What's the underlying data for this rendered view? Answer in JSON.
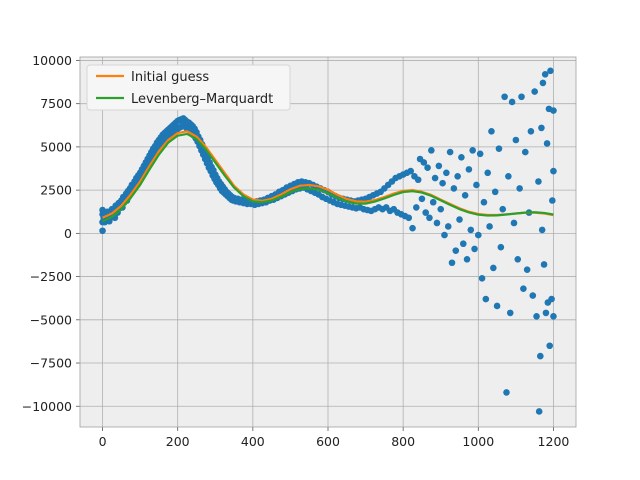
{
  "colors": {
    "background": "#ffffff",
    "plot_background": "#eeeeee",
    "grid": "#b0b0b0",
    "scatter": "#1f77b4",
    "initial_guess": "#ff7f0e",
    "levenberg_marquardt": "#2ca02c"
  },
  "chart_data": {
    "type": "scatter",
    "title": "",
    "xlabel": "",
    "ylabel": "",
    "xlim": [
      -60,
      1260
    ],
    "ylim": [
      -11200,
      10200
    ],
    "grid": true,
    "legend_placement": "top-left",
    "x_ticks": [
      0,
      200,
      400,
      600,
      800,
      1000,
      1200
    ],
    "x_tick_labels": [
      "0",
      "200",
      "400",
      "600",
      "800",
      "1000",
      "1200"
    ],
    "y_ticks": [
      10000,
      7500,
      5000,
      2500,
      0,
      -2500,
      -5000,
      -7500,
      -10000
    ],
    "y_tick_labels": [
      "10000",
      "7500",
      "5000",
      "2500",
      "0",
      "−2500",
      "−5000",
      "−7500",
      "−10000"
    ],
    "series": [
      {
        "name": "Initial guess",
        "kind": "line",
        "color": "#ff7f0e",
        "x": [
          0,
          25,
          50,
          75,
          100,
          125,
          150,
          175,
          200,
          225,
          250,
          275,
          300,
          325,
          350,
          375,
          400,
          425,
          450,
          475,
          500,
          525,
          550,
          575,
          600,
          625,
          650,
          675,
          700,
          725,
          750,
          775,
          800,
          825,
          850,
          875,
          900,
          925,
          950,
          975,
          1000,
          1025,
          1050,
          1075,
          1100,
          1125,
          1150,
          1175,
          1200
        ],
        "y": [
          900,
          1150,
          1600,
          2250,
          3000,
          3900,
          4750,
          5400,
          5800,
          5900,
          5600,
          5000,
          4250,
          3500,
          2750,
          2250,
          1950,
          1880,
          2000,
          2250,
          2550,
          2750,
          2800,
          2720,
          2520,
          2230,
          1990,
          1850,
          1830,
          1930,
          2100,
          2300,
          2460,
          2500,
          2400,
          2220,
          1950,
          1700,
          1450,
          1250,
          1120,
          1060,
          1060,
          1100,
          1150,
          1200,
          1200,
          1150,
          1050
        ]
      },
      {
        "name": "Levenberg–Marquardt",
        "kind": "line",
        "color": "#2ca02c",
        "x": [
          0,
          25,
          50,
          75,
          100,
          125,
          150,
          175,
          200,
          225,
          250,
          275,
          300,
          325,
          350,
          375,
          400,
          425,
          450,
          475,
          500,
          525,
          550,
          575,
          600,
          625,
          650,
          675,
          700,
          725,
          750,
          775,
          800,
          825,
          850,
          875,
          900,
          925,
          950,
          975,
          1000,
          1025,
          1050,
          1075,
          1100,
          1125,
          1150,
          1175,
          1200
        ],
        "y": [
          700,
          950,
          1400,
          2050,
          2800,
          3700,
          4550,
          5250,
          5650,
          5750,
          5450,
          4850,
          4100,
          3350,
          2650,
          2150,
          1850,
          1800,
          1900,
          2120,
          2380,
          2560,
          2600,
          2520,
          2320,
          2050,
          1840,
          1720,
          1720,
          1840,
          2020,
          2220,
          2390,
          2440,
          2360,
          2170,
          1910,
          1650,
          1400,
          1210,
          1080,
          1030,
          1040,
          1090,
          1150,
          1200,
          1220,
          1180,
          1090
        ]
      }
    ],
    "scatter_points": [
      [
        0,
        150
      ],
      [
        0,
        650
      ],
      [
        0,
        1100
      ],
      [
        0,
        1350
      ],
      [
        3,
        900
      ],
      [
        6,
        650
      ],
      [
        8,
        1100
      ],
      [
        10,
        800
      ],
      [
        13,
        1250
      ],
      [
        15,
        900
      ],
      [
        18,
        700
      ],
      [
        20,
        1150
      ],
      [
        23,
        950
      ],
      [
        25,
        1400
      ],
      [
        28,
        1050
      ],
      [
        30,
        1250
      ],
      [
        33,
        900
      ],
      [
        35,
        1600
      ],
      [
        38,
        1300
      ],
      [
        40,
        1200
      ],
      [
        43,
        1750
      ],
      [
        45,
        1450
      ],
      [
        48,
        1600
      ],
      [
        50,
        1900
      ],
      [
        53,
        1500
      ],
      [
        55,
        2100
      ],
      [
        58,
        1800
      ],
      [
        60,
        2000
      ],
      [
        63,
        2300
      ],
      [
        65,
        1900
      ],
      [
        68,
        2450
      ],
      [
        70,
        2150
      ],
      [
        73,
        2600
      ],
      [
        75,
        2300
      ],
      [
        78,
        2800
      ],
      [
        80,
        2500
      ],
      [
        83,
        2700
      ],
      [
        85,
        3000
      ],
      [
        88,
        2700
      ],
      [
        90,
        3200
      ],
      [
        93,
        2900
      ],
      [
        95,
        3350
      ],
      [
        98,
        3100
      ],
      [
        100,
        3500
      ],
      [
        103,
        3250
      ],
      [
        105,
        3700
      ],
      [
        108,
        3400
      ],
      [
        110,
        3900
      ],
      [
        113,
        3600
      ],
      [
        115,
        4100
      ],
      [
        118,
        3850
      ],
      [
        120,
        4300
      ],
      [
        123,
        3950
      ],
      [
        125,
        4500
      ],
      [
        128,
        4200
      ],
      [
        130,
        4700
      ],
      [
        133,
        4350
      ],
      [
        135,
        4900
      ],
      [
        138,
        4550
      ],
      [
        140,
        5050
      ],
      [
        143,
        4800
      ],
      [
        145,
        5250
      ],
      [
        148,
        4900
      ],
      [
        150,
        5400
      ],
      [
        153,
        5100
      ],
      [
        155,
        5550
      ],
      [
        158,
        5200
      ],
      [
        160,
        5700
      ],
      [
        163,
        5350
      ],
      [
        165,
        5800
      ],
      [
        168,
        5500
      ],
      [
        170,
        5900
      ],
      [
        173,
        5550
      ],
      [
        175,
        6000
      ],
      [
        178,
        5650
      ],
      [
        180,
        6100
      ],
      [
        183,
        5800
      ],
      [
        185,
        6200
      ],
      [
        188,
        5900
      ],
      [
        190,
        6300
      ],
      [
        193,
        5950
      ],
      [
        195,
        6400
      ],
      [
        198,
        6000
      ],
      [
        200,
        6500
      ],
      [
        203,
        6100
      ],
      [
        205,
        6550
      ],
      [
        208,
        6150
      ],
      [
        210,
        6600
      ],
      [
        213,
        6250
      ],
      [
        215,
        6650
      ],
      [
        218,
        6200
      ],
      [
        220,
        6550
      ],
      [
        223,
        6100
      ],
      [
        225,
        6450
      ],
      [
        228,
        6050
      ],
      [
        230,
        6400
      ],
      [
        233,
        5950
      ],
      [
        235,
        6300
      ],
      [
        238,
        5800
      ],
      [
        240,
        6200
      ],
      [
        243,
        5650
      ],
      [
        245,
        6050
      ],
      [
        248,
        5500
      ],
      [
        250,
        5850
      ],
      [
        253,
        5300
      ],
      [
        255,
        5600
      ],
      [
        258,
        5050
      ],
      [
        260,
        5400
      ],
      [
        263,
        4800
      ],
      [
        265,
        5150
      ],
      [
        268,
        4550
      ],
      [
        270,
        4900
      ],
      [
        273,
        4300
      ],
      [
        275,
        4650
      ],
      [
        278,
        4050
      ],
      [
        280,
        4350
      ],
      [
        283,
        3800
      ],
      [
        285,
        4100
      ],
      [
        288,
        3600
      ],
      [
        290,
        3850
      ],
      [
        293,
        3350
      ],
      [
        295,
        3650
      ],
      [
        298,
        3150
      ],
      [
        300,
        3400
      ],
      [
        303,
        2950
      ],
      [
        305,
        3200
      ],
      [
        308,
        2800
      ],
      [
        310,
        3000
      ],
      [
        313,
        2600
      ],
      [
        315,
        2850
      ],
      [
        318,
        2450
      ],
      [
        320,
        2700
      ],
      [
        323,
        2350
      ],
      [
        325,
        2550
      ],
      [
        328,
        2250
      ],
      [
        330,
        2400
      ],
      [
        333,
        2150
      ],
      [
        335,
        2300
      ],
      [
        338,
        2050
      ],
      [
        340,
        2200
      ],
      [
        343,
        1950
      ],
      [
        345,
        2100
      ],
      [
        348,
        1900
      ],
      [
        350,
        2050
      ],
      [
        355,
        1850
      ],
      [
        360,
        2000
      ],
      [
        365,
        1800
      ],
      [
        370,
        1950
      ],
      [
        375,
        1750
      ],
      [
        380,
        1900
      ],
      [
        385,
        1700
      ],
      [
        390,
        1850
      ],
      [
        395,
        1700
      ],
      [
        400,
        1800
      ],
      [
        405,
        1650
      ],
      [
        410,
        1850
      ],
      [
        415,
        1700
      ],
      [
        420,
        1900
      ],
      [
        425,
        1750
      ],
      [
        430,
        1950
      ],
      [
        435,
        1800
      ],
      [
        440,
        2050
      ],
      [
        445,
        1900
      ],
      [
        450,
        2150
      ],
      [
        455,
        1950
      ],
      [
        460,
        2250
      ],
      [
        465,
        2050
      ],
      [
        470,
        2400
      ],
      [
        475,
        2150
      ],
      [
        480,
        2500
      ],
      [
        485,
        2250
      ],
      [
        490,
        2650
      ],
      [
        495,
        2350
      ],
      [
        500,
        2750
      ],
      [
        505,
        2450
      ],
      [
        510,
        2850
      ],
      [
        515,
        2550
      ],
      [
        520,
        2950
      ],
      [
        525,
        2600
      ],
      [
        530,
        3000
      ],
      [
        535,
        2650
      ],
      [
        540,
        2950
      ],
      [
        545,
        2550
      ],
      [
        550,
        2900
      ],
      [
        555,
        2450
      ],
      [
        560,
        2800
      ],
      [
        565,
        2350
      ],
      [
        570,
        2700
      ],
      [
        575,
        2250
      ],
      [
        580,
        2600
      ],
      [
        585,
        2100
      ],
      [
        590,
        2500
      ],
      [
        595,
        2000
      ],
      [
        600,
        2400
      ],
      [
        605,
        1900
      ],
      [
        610,
        2250
      ],
      [
        615,
        1800
      ],
      [
        620,
        2150
      ],
      [
        625,
        1700
      ],
      [
        630,
        2050
      ],
      [
        635,
        1650
      ],
      [
        640,
        2000
      ],
      [
        645,
        1600
      ],
      [
        650,
        1950
      ],
      [
        655,
        1550
      ],
      [
        660,
        1900
      ],
      [
        665,
        1500
      ],
      [
        670,
        1850
      ],
      [
        675,
        1450
      ],
      [
        680,
        1900
      ],
      [
        685,
        1500
      ],
      [
        690,
        1950
      ],
      [
        695,
        1400
      ],
      [
        700,
        2000
      ],
      [
        705,
        1350
      ],
      [
        710,
        2100
      ],
      [
        715,
        1300
      ],
      [
        720,
        2200
      ],
      [
        725,
        1400
      ],
      [
        730,
        2300
      ],
      [
        735,
        1500
      ],
      [
        740,
        2400
      ],
      [
        745,
        1400
      ],
      [
        750,
        2600
      ],
      [
        755,
        1500
      ],
      [
        760,
        2800
      ],
      [
        765,
        1300
      ],
      [
        770,
        3000
      ],
      [
        775,
        1400
      ],
      [
        780,
        3200
      ],
      [
        785,
        1200
      ],
      [
        790,
        3300
      ],
      [
        795,
        1100
      ],
      [
        800,
        3400
      ],
      [
        805,
        1000
      ],
      [
        810,
        3500
      ],
      [
        815,
        900
      ],
      [
        820,
        3600
      ],
      [
        825,
        300
      ],
      [
        830,
        3300
      ],
      [
        835,
        1500
      ],
      [
        840,
        3100
      ],
      [
        845,
        4300
      ],
      [
        850,
        2000
      ],
      [
        855,
        4100
      ],
      [
        860,
        1200
      ],
      [
        865,
        3800
      ],
      [
        870,
        900
      ],
      [
        875,
        4800
      ],
      [
        880,
        1800
      ],
      [
        885,
        3200
      ],
      [
        890,
        600
      ],
      [
        895,
        3900
      ],
      [
        900,
        1400
      ],
      [
        905,
        2900
      ],
      [
        910,
        -100
      ],
      [
        915,
        3500
      ],
      [
        920,
        400
      ],
      [
        925,
        4700
      ],
      [
        930,
        -1700
      ],
      [
        935,
        2600
      ],
      [
        940,
        -1000
      ],
      [
        945,
        3300
      ],
      [
        950,
        800
      ],
      [
        955,
        4400
      ],
      [
        960,
        -600
      ],
      [
        965,
        2200
      ],
      [
        970,
        -1500
      ],
      [
        975,
        3700
      ],
      [
        980,
        200
      ],
      [
        985,
        4800
      ],
      [
        990,
        -900
      ],
      [
        995,
        2800
      ],
      [
        1000,
        -100
      ],
      [
        1005,
        4600
      ],
      [
        1010,
        -2600
      ],
      [
        1015,
        1800
      ],
      [
        1020,
        -3800
      ],
      [
        1025,
        3500
      ],
      [
        1030,
        400
      ],
      [
        1035,
        5900
      ],
      [
        1040,
        -2000
      ],
      [
        1045,
        2400
      ],
      [
        1050,
        -4200
      ],
      [
        1055,
        4900
      ],
      [
        1060,
        -800
      ],
      [
        1065,
        1400
      ],
      [
        1070,
        7900
      ],
      [
        1075,
        -9200
      ],
      [
        1080,
        3300
      ],
      [
        1085,
        -4600
      ],
      [
        1090,
        7600
      ],
      [
        1095,
        600
      ],
      [
        1100,
        5400
      ],
      [
        1105,
        -1500
      ],
      [
        1110,
        2600
      ],
      [
        1115,
        7900
      ],
      [
        1120,
        -3200
      ],
      [
        1125,
        4700
      ],
      [
        1130,
        -2100
      ],
      [
        1135,
        1200
      ],
      [
        1140,
        5900
      ],
      [
        1145,
        -3600
      ],
      [
        1150,
        8200
      ],
      [
        1155,
        -4800
      ],
      [
        1160,
        3000
      ],
      [
        1162,
        -10300
      ],
      [
        1165,
        -7100
      ],
      [
        1168,
        6100
      ],
      [
        1170,
        200
      ],
      [
        1172,
        8700
      ],
      [
        1175,
        -1800
      ],
      [
        1178,
        9200
      ],
      [
        1180,
        -4600
      ],
      [
        1183,
        5200
      ],
      [
        1185,
        -4000
      ],
      [
        1188,
        7200
      ],
      [
        1190,
        -6500
      ],
      [
        1192,
        9400
      ],
      [
        1195,
        -3800
      ],
      [
        1197,
        1900
      ],
      [
        1200,
        -4800
      ],
      [
        1200,
        7100
      ],
      [
        1200,
        3600
      ]
    ]
  }
}
